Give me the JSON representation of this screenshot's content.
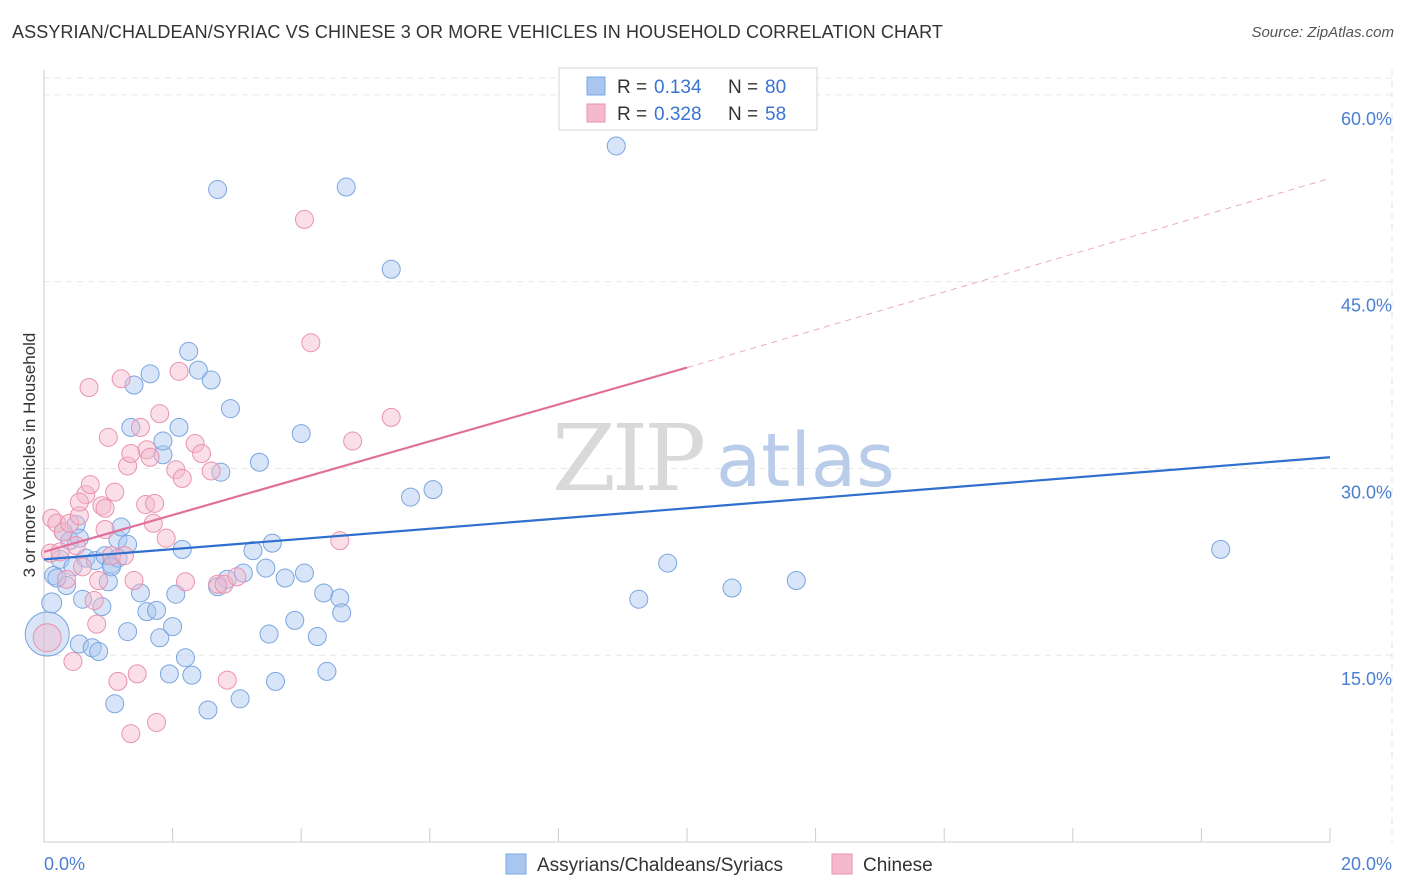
{
  "title": "ASSYRIAN/CHALDEAN/SYRIAC VS CHINESE 3 OR MORE VEHICLES IN HOUSEHOLD CORRELATION CHART",
  "source": "Source: ZipAtlas.com",
  "watermark": {
    "zip": "ZIP",
    "atlas": "atlas"
  },
  "colors": {
    "blue_fill": "#a8c6ef",
    "blue_stroke": "#7aa5e0",
    "blue_line": "#2f6fce",
    "pink_fill": "#f5b9cd",
    "pink_stroke": "#ea92b0",
    "pink_line": "#e0709a",
    "grid": "#e6e6e6",
    "tick_text": "#4a7fd0"
  },
  "legend": {
    "r_label": "R =",
    "n_label": "N =",
    "series": [
      {
        "r": "0.134",
        "n": "80"
      },
      {
        "r": "0.328",
        "n": "58"
      }
    ]
  },
  "chart_data": {
    "type": "scatter",
    "title": "ASSYRIAN/CHALDEAN/SYRIAC VS CHINESE 3 OR MORE VEHICLES IN HOUSEHOLD CORRELATION CHART",
    "xlabel": "",
    "ylabel": "3 or more Vehicles in Household",
    "xlim": [
      0,
      20
    ],
    "ylim": [
      0,
      62
    ],
    "x_tick_labels": {
      "left": "0.0%",
      "right": "20.0%"
    },
    "y_ticks": [
      {
        "value": 15,
        "label": "15.0%"
      },
      {
        "value": 30,
        "label": "30.0%"
      },
      {
        "value": 45,
        "label": "45.0%"
      },
      {
        "value": 60,
        "label": "60.0%"
      }
    ],
    "series": [
      {
        "name": "Assyrians/Chaldeans/Syriacs",
        "color": "blue",
        "trend": {
          "x": [
            0,
            20
          ],
          "y": [
            22.7,
            30.9
          ],
          "dashed_from": null
        },
        "points": [
          [
            0.05,
            16.7,
            22
          ],
          [
            0.12,
            19.2,
            10
          ],
          [
            0.15,
            21.4,
            9
          ],
          [
            0.25,
            22.7,
            9
          ],
          [
            0.3,
            24.9,
            9
          ],
          [
            0.35,
            20.6,
            9
          ],
          [
            0.4,
            24.2,
            9
          ],
          [
            0.45,
            22.1,
            9
          ],
          [
            0.5,
            25.5,
            9
          ],
          [
            0.55,
            15.9,
            9
          ],
          [
            0.65,
            22.8,
            9
          ],
          [
            0.75,
            15.6,
            9
          ],
          [
            0.8,
            22.6,
            9
          ],
          [
            0.85,
            15.3,
            9
          ],
          [
            0.9,
            18.9,
            9
          ],
          [
            0.95,
            23.0,
            9
          ],
          [
            1.0,
            20.9,
            9
          ],
          [
            1.05,
            22.3,
            9
          ],
          [
            1.1,
            11.1,
            9
          ],
          [
            1.15,
            24.3,
            9
          ],
          [
            1.2,
            25.3,
            9
          ],
          [
            1.3,
            16.9,
            9
          ],
          [
            1.3,
            23.9,
            9
          ],
          [
            1.35,
            33.3,
            9
          ],
          [
            1.4,
            36.7,
            9
          ],
          [
            1.5,
            20.0,
            9
          ],
          [
            1.6,
            18.5,
            9
          ],
          [
            1.65,
            37.6,
            9
          ],
          [
            1.75,
            18.6,
            9
          ],
          [
            1.8,
            16.4,
            9
          ],
          [
            1.85,
            31.1,
            9
          ],
          [
            1.95,
            13.5,
            9
          ],
          [
            2.0,
            17.3,
            9
          ],
          [
            2.05,
            19.9,
            9
          ],
          [
            2.1,
            33.3,
            9
          ],
          [
            2.15,
            23.5,
            9
          ],
          [
            2.25,
            39.4,
            9
          ],
          [
            2.3,
            13.4,
            9
          ],
          [
            2.4,
            37.9,
            9
          ],
          [
            2.55,
            10.6,
            9
          ],
          [
            2.6,
            37.1,
            9
          ],
          [
            2.7,
            52.4,
            9
          ],
          [
            2.75,
            29.7,
            9
          ],
          [
            2.85,
            21.1,
            9
          ],
          [
            2.9,
            34.8,
            9
          ],
          [
            3.05,
            11.5,
            9
          ],
          [
            3.1,
            21.6,
            9
          ],
          [
            3.25,
            23.4,
            9
          ],
          [
            3.45,
            22.0,
            9
          ],
          [
            3.5,
            16.7,
            9
          ],
          [
            3.55,
            24.0,
            9
          ],
          [
            3.6,
            12.9,
            9
          ],
          [
            3.75,
            21.2,
            9
          ],
          [
            3.9,
            17.8,
            9
          ],
          [
            4.0,
            32.8,
            9
          ],
          [
            4.05,
            21.6,
            9
          ],
          [
            4.25,
            16.5,
            9
          ],
          [
            4.35,
            20.0,
            9
          ],
          [
            4.4,
            13.7,
            9
          ],
          [
            4.6,
            19.6,
            9
          ],
          [
            4.63,
            18.4,
            9
          ],
          [
            4.7,
            52.6,
            9
          ],
          [
            5.4,
            46.0,
            9
          ],
          [
            5.7,
            27.7,
            9
          ],
          [
            6.05,
            28.3,
            9
          ],
          [
            8.9,
            55.9,
            9
          ],
          [
            9.25,
            19.5,
            9
          ],
          [
            9.7,
            22.4,
            9
          ],
          [
            10.7,
            20.4,
            9
          ],
          [
            11.7,
            21.0,
            9
          ],
          [
            18.3,
            23.5,
            9
          ],
          [
            0.2,
            21.2,
            9
          ],
          [
            0.6,
            19.5,
            9
          ],
          [
            1.15,
            22.8,
            9
          ],
          [
            2.7,
            20.5,
            9
          ],
          [
            1.05,
            22.1,
            9
          ],
          [
            0.55,
            24.4,
            9
          ],
          [
            1.85,
            32.2,
            9
          ],
          [
            3.35,
            30.5,
            9
          ],
          [
            2.2,
            14.8,
            9
          ]
        ]
      },
      {
        "name": "Chinese",
        "color": "pink",
        "trend": {
          "x": [
            0,
            10,
            20
          ],
          "y": [
            23.3,
            38.1,
            53.3
          ],
          "dashed_from": 10
        },
        "points": [
          [
            0.05,
            16.4,
            14
          ],
          [
            0.1,
            23.2,
            9
          ],
          [
            0.12,
            26.0,
            9
          ],
          [
            0.2,
            25.6,
            9
          ],
          [
            0.3,
            24.9,
            9
          ],
          [
            0.35,
            21.1,
            9
          ],
          [
            0.4,
            25.6,
            9
          ],
          [
            0.45,
            14.5,
            9
          ],
          [
            0.5,
            23.8,
            9
          ],
          [
            0.55,
            26.2,
            9
          ],
          [
            0.6,
            22.1,
            9
          ],
          [
            0.65,
            27.9,
            9
          ],
          [
            0.7,
            36.5,
            9
          ],
          [
            0.72,
            28.7,
            9
          ],
          [
            0.78,
            19.4,
            9
          ],
          [
            0.82,
            17.5,
            9
          ],
          [
            0.85,
            21.0,
            9
          ],
          [
            0.9,
            27.0,
            9
          ],
          [
            0.95,
            25.1,
            9
          ],
          [
            1.0,
            32.5,
            9
          ],
          [
            1.05,
            23.0,
            9
          ],
          [
            1.1,
            28.1,
            9
          ],
          [
            1.15,
            12.9,
            9
          ],
          [
            1.2,
            37.2,
            9
          ],
          [
            1.25,
            23.0,
            9
          ],
          [
            1.3,
            30.2,
            9
          ],
          [
            1.35,
            8.7,
            9
          ],
          [
            1.4,
            21.0,
            9
          ],
          [
            1.45,
            13.5,
            9
          ],
          [
            1.5,
            33.3,
            9
          ],
          [
            1.58,
            27.1,
            9
          ],
          [
            1.6,
            31.5,
            9
          ],
          [
            1.65,
            30.9,
            9
          ],
          [
            1.7,
            25.6,
            9
          ],
          [
            1.72,
            27.2,
            9
          ],
          [
            1.75,
            9.6,
            9
          ],
          [
            1.8,
            34.4,
            9
          ],
          [
            1.9,
            24.4,
            9
          ],
          [
            2.05,
            29.9,
            9
          ],
          [
            2.1,
            37.8,
            9
          ],
          [
            2.15,
            29.2,
            9
          ],
          [
            2.2,
            20.9,
            9
          ],
          [
            2.35,
            32.0,
            9
          ],
          [
            2.45,
            31.2,
            9
          ],
          [
            2.6,
            29.8,
            9
          ],
          [
            2.7,
            20.7,
            9
          ],
          [
            2.8,
            20.7,
            9
          ],
          [
            2.85,
            13.0,
            9
          ],
          [
            4.05,
            50.0,
            9
          ],
          [
            4.15,
            40.1,
            9
          ],
          [
            4.6,
            24.2,
            9
          ],
          [
            4.8,
            32.2,
            9
          ],
          [
            5.4,
            34.1,
            9
          ],
          [
            0.25,
            23.3,
            9
          ],
          [
            0.55,
            27.3,
            9
          ],
          [
            0.95,
            26.8,
            9
          ],
          [
            1.35,
            31.2,
            9
          ],
          [
            3.0,
            21.3,
            9
          ]
        ]
      }
    ]
  },
  "bottom_legend": {
    "items": [
      {
        "label": "Assyrians/Chaldeans/Syriacs"
      },
      {
        "label": "Chinese"
      }
    ]
  }
}
